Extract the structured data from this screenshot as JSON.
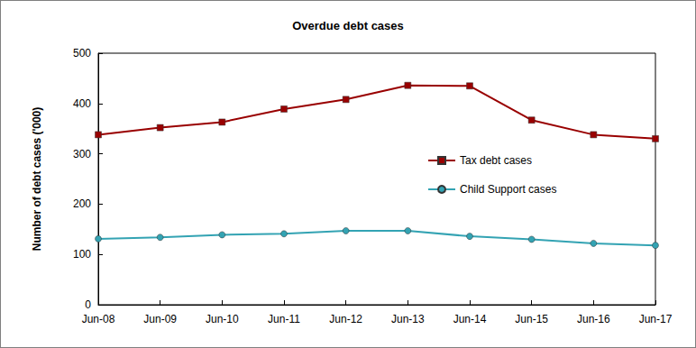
{
  "chart_data": {
    "type": "line",
    "title": "Overdue debt cases",
    "y_label": "Number of debt cases ('000)",
    "categories": [
      "Jun-08",
      "Jun-09",
      "Jun-10",
      "Jun-11",
      "Jun-12",
      "Jun-13",
      "Jun-14",
      "Jun-15",
      "Jun-16",
      "Jun-17"
    ],
    "series": [
      {
        "name": "Tax debt cases",
        "color": "#990000",
        "marker": "square",
        "line_style": "solid",
        "values": [
          338,
          352,
          363,
          389,
          408,
          436,
          435,
          367,
          338,
          330
        ]
      },
      {
        "name": "Child Support cases",
        "color": "#33a3b3",
        "marker": "circle",
        "line_style": "solid",
        "values": [
          131,
          134,
          139,
          141,
          147,
          147,
          136,
          130,
          122,
          118
        ]
      }
    ],
    "ylim": [
      0,
      500
    ],
    "yticks": [
      0,
      100,
      200,
      300,
      400,
      500
    ],
    "grid": false,
    "legend": "right"
  }
}
